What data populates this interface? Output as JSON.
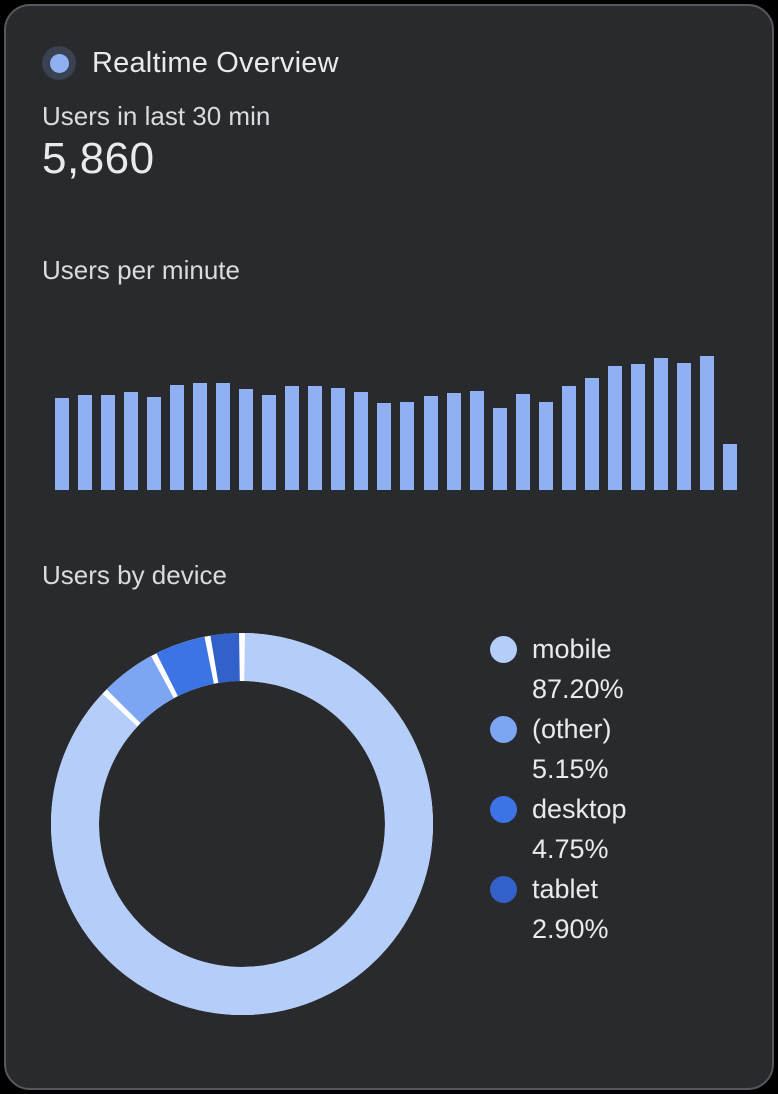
{
  "header": {
    "title": "Realtime Overview",
    "icon": "realtime-pulse-icon"
  },
  "metric": {
    "label": "Users in last 30 min",
    "value": "5,860"
  },
  "sections": {
    "users_per_minute": "Users per minute",
    "users_by_device": "Users by device"
  },
  "colors": {
    "card_background": "#292a2d",
    "card_border": "#55585c",
    "title_text": "#e8eaed",
    "label_text": "#d9dbdf",
    "bar_fill": "#8fb0f2",
    "icon_ring": "#3a4150",
    "icon_dot": "#8fb1f2",
    "donut_gap": "#ffffff"
  },
  "chart_data": [
    {
      "type": "bar",
      "title": "Users per minute",
      "categories": [],
      "values": [
        92,
        95,
        95,
        98,
        93,
        105,
        107,
        107,
        101,
        95,
        104,
        104,
        102,
        98,
        87,
        88,
        94,
        97,
        99,
        82,
        96,
        88,
        104,
        112,
        124,
        126,
        132,
        127,
        134,
        46
      ],
      "xlabel": "",
      "ylabel": "",
      "ylim": [
        0,
        144
      ],
      "grid": false,
      "bar_color": "#8fb0f2",
      "legend_position": "none"
    },
    {
      "type": "pie",
      "donut": true,
      "title": "Users by device",
      "labels": [
        "mobile",
        "(other)",
        "desktop",
        "tablet"
      ],
      "values": [
        87.2,
        5.15,
        4.75,
        2.9
      ],
      "display_values": [
        "87.20%",
        "5.15%",
        "4.75%",
        "2.90%"
      ],
      "colors": [
        "#b5cdf9",
        "#7ca6f3",
        "#3c74e5",
        "#3261c9"
      ],
      "legend_position": "right",
      "start_angle_deg": 0,
      "direction": "clockwise"
    }
  ]
}
